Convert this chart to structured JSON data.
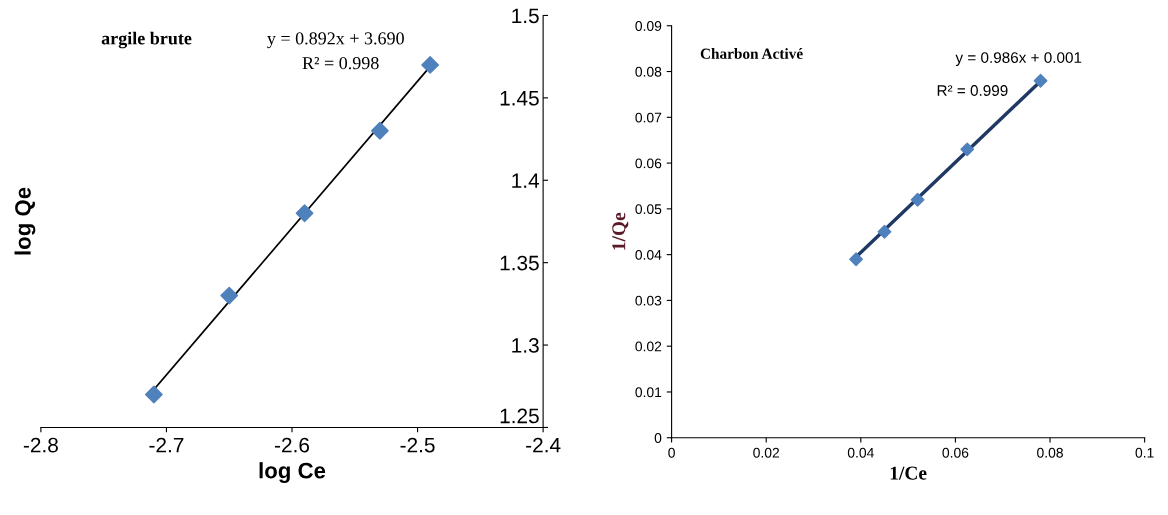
{
  "chart_data": [
    {
      "type": "scatter",
      "xlabel": "log Ce",
      "ylabel": "log Qe",
      "annotations": [
        "argile brute",
        "y = 0.892x + 3.690",
        "R² = 0.998"
      ],
      "xlim": [
        -2.8,
        -2.4
      ],
      "xticks": [
        -2.8,
        -2.7,
        -2.6,
        -2.5,
        -2.4
      ],
      "ylim": [
        1.25,
        1.5
      ],
      "yticks": [
        1.25,
        1.3,
        1.35,
        1.4,
        1.45,
        1.5
      ],
      "grid": false,
      "legend": false,
      "series": [
        {
          "color": "#4f81bd",
          "marker": "diamond",
          "x": [
            -2.71,
            -2.65,
            -2.59,
            -2.53,
            -2.49
          ],
          "values": [
            1.27,
            1.33,
            1.38,
            1.43,
            1.47
          ]
        },
        {
          "type": "line",
          "color": "#000000",
          "marker": "none",
          "x": [
            -2.71,
            -2.49
          ],
          "values": [
            1.273,
            1.469
          ]
        }
      ]
    },
    {
      "type": "scatter",
      "xlabel": "1/Ce",
      "ylabel": "1/Qe",
      "annotations": [
        "Charbon Activé",
        "y = 0.986x + 0.001",
        "R² = 0.999"
      ],
      "xlim": [
        0,
        0.1
      ],
      "xticks": [
        0,
        0.02,
        0.04,
        0.06,
        0.08,
        0.1
      ],
      "ylim": [
        0,
        0.09
      ],
      "yticks": [
        0,
        0.01,
        0.02,
        0.03,
        0.04,
        0.05,
        0.06,
        0.07,
        0.08,
        0.09
      ],
      "grid": false,
      "legend": false,
      "series": [
        {
          "color": "#4f81bd",
          "marker": "diamond",
          "x": [
            0.039,
            0.045,
            0.052,
            0.0625,
            0.078
          ],
          "values": [
            0.039,
            0.045,
            0.052,
            0.063,
            0.078
          ]
        },
        {
          "type": "line",
          "color": "#1f3864",
          "marker": "none",
          "x": [
            0.039,
            0.078
          ],
          "values": [
            0.0395,
            0.0779
          ]
        }
      ]
    }
  ]
}
